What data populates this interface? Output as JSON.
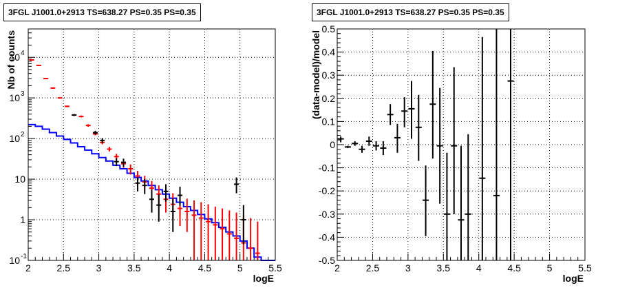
{
  "chart_data": [
    {
      "type": "line",
      "title": "3FGL J1001.0+2913 TS=638.27 PS=0.35 PS=0.35",
      "xlabel": "logE",
      "ylabel": "Nb of counts",
      "xlim": [
        2,
        5.5
      ],
      "ylim": [
        0.1,
        50000
      ],
      "yscale": "log",
      "grid": true,
      "x_ticks": [
        "2",
        "2.5",
        "3",
        "3.5",
        "4",
        "4.5",
        "5",
        "5.5"
      ],
      "y_ticks": [
        {
          "value": 0.1,
          "label": "10",
          "exp": "-1"
        },
        {
          "value": 1,
          "label": "1",
          "exp": ""
        },
        {
          "value": 10,
          "label": "10",
          "exp": ""
        },
        {
          "value": 100,
          "label": "10",
          "exp": "2"
        },
        {
          "value": 1000,
          "label": "10",
          "exp": "3"
        },
        {
          "value": 10000,
          "label": "10",
          "exp": "4"
        }
      ],
      "bin_edges": [
        2.0,
        2.1,
        2.2,
        2.3,
        2.4,
        2.5,
        2.6,
        2.7,
        2.8,
        2.9,
        3.0,
        3.1,
        3.2,
        3.3,
        3.4,
        3.5,
        3.6,
        3.7,
        3.8,
        3.9,
        4.0,
        4.1,
        4.2,
        4.3,
        4.4,
        4.5,
        4.6,
        4.7,
        4.8,
        4.9,
        5.0,
        5.1,
        5.2,
        5.3,
        5.4,
        5.5
      ],
      "series": [
        {
          "name": "",
          "color": "#0000ff",
          "kind": "step",
          "values": [
            220,
            200,
            170,
            140,
            115,
            95,
            78,
            63,
            52,
            42,
            34,
            28,
            22,
            18,
            14,
            11,
            9,
            7,
            5.5,
            4.3,
            3.4,
            2.7,
            2.1,
            1.7,
            1.35,
            1.05,
            0.85,
            0.65,
            0.5,
            0.4,
            0.3,
            0.2,
            0.12,
            0.1,
            0.1
          ]
        },
        {
          "name": "",
          "color": "#ff0000",
          "kind": "error",
          "points": [
            {
              "x": 2.05,
              "y": 8600,
              "lo": 8400,
              "hi": 8800
            },
            {
              "x": 2.15,
              "y": 6300,
              "lo": 6150,
              "hi": 6450
            },
            {
              "x": 2.25,
              "y": 3000,
              "lo": 2900,
              "hi": 3100
            },
            {
              "x": 2.35,
              "y": 1750,
              "lo": 1680,
              "hi": 1820
            },
            {
              "x": 2.45,
              "y": 1000,
              "lo": 960,
              "hi": 1040
            },
            {
              "x": 2.55,
              "y": 620,
              "lo": 590,
              "hi": 650
            },
            {
              "x": 2.65,
              "y": 380,
              "lo": 360,
              "hi": 400
            },
            {
              "x": 2.75,
              "y": 350,
              "lo": 330,
              "hi": 370
            },
            {
              "x": 2.85,
              "y": 210,
              "lo": 195,
              "hi": 225
            },
            {
              "x": 2.95,
              "y": 130,
              "lo": 120,
              "hi": 140
            },
            {
              "x": 3.05,
              "y": 80,
              "lo": 72,
              "hi": 88
            },
            {
              "x": 3.15,
              "y": 55,
              "lo": 48,
              "hi": 62
            },
            {
              "x": 3.25,
              "y": 36,
              "lo": 30,
              "hi": 42
            },
            {
              "x": 3.35,
              "y": 24,
              "lo": 19,
              "hi": 29
            },
            {
              "x": 3.45,
              "y": 18,
              "lo": 13,
              "hi": 23
            },
            {
              "x": 3.55,
              "y": 12,
              "lo": 8,
              "hi": 16
            },
            {
              "x": 3.65,
              "y": 8.5,
              "lo": 5.5,
              "hi": 12
            },
            {
              "x": 3.75,
              "y": 6,
              "lo": 3.5,
              "hi": 9
            },
            {
              "x": 3.85,
              "y": 4.3,
              "lo": 2.3,
              "hi": 7
            },
            {
              "x": 3.95,
              "y": 3.2,
              "lo": 1.5,
              "hi": 5.5
            },
            {
              "x": 4.05,
              "y": 2.4,
              "lo": 1.0,
              "hi": 4.5
            },
            {
              "x": 4.15,
              "y": 1.9,
              "lo": 0.7,
              "hi": 3.8
            },
            {
              "x": 4.25,
              "y": 1.6,
              "lo": 0.5,
              "hi": 3.3
            },
            {
              "x": 4.35,
              "y": 1.3,
              "lo": 0.1,
              "hi": 3.0
            },
            {
              "x": 4.45,
              "y": 1.1,
              "lo": 0.1,
              "hi": 2.7
            },
            {
              "x": 4.55,
              "y": 0.9,
              "lo": 0.1,
              "hi": 2.4
            },
            {
              "x": 4.65,
              "y": 0.75,
              "lo": 0.1,
              "hi": 2.1
            },
            {
              "x": 4.75,
              "y": 0.6,
              "lo": 0.1,
              "hi": 1.9
            },
            {
              "x": 4.85,
              "y": 0.45,
              "lo": 0.1,
              "hi": 1.7
            },
            {
              "x": 4.95,
              "y": 0.35,
              "lo": 0.1,
              "hi": 1.5
            },
            {
              "x": 5.05,
              "y": 0.27,
              "lo": 0.1,
              "hi": 1.3
            },
            {
              "x": 5.15,
              "y": 0.2,
              "lo": 0.1,
              "hi": 1.1
            },
            {
              "x": 5.25,
              "y": 0.15,
              "lo": 0.1,
              "hi": 0.9
            }
          ]
        },
        {
          "name": "",
          "color": "#000000",
          "kind": "error",
          "points": [
            {
              "x": 2.65,
              "y": 380,
              "lo": 360,
              "hi": 400
            },
            {
              "x": 2.95,
              "y": 140,
              "lo": 125,
              "hi": 155
            },
            {
              "x": 3.05,
              "y": 90,
              "lo": 78,
              "hi": 102
            },
            {
              "x": 3.25,
              "y": 27,
              "lo": 21,
              "hi": 33
            },
            {
              "x": 3.35,
              "y": 26,
              "lo": 20,
              "hi": 32
            },
            {
              "x": 3.55,
              "y": 8,
              "lo": 5,
              "hi": 11
            },
            {
              "x": 3.65,
              "y": 7,
              "lo": 4.3,
              "hi": 10
            },
            {
              "x": 3.75,
              "y": 3.2,
              "lo": 1.5,
              "hi": 5.5
            },
            {
              "x": 3.85,
              "y": 2.3,
              "lo": 0.9,
              "hi": 4.2
            },
            {
              "x": 3.95,
              "y": 5,
              "lo": 2.8,
              "hi": 7.5
            },
            {
              "x": 4.05,
              "y": 1.6,
              "lo": 0.5,
              "hi": 3.3
            },
            {
              "x": 4.15,
              "y": 4,
              "lo": 2.2,
              "hi": 6.5
            },
            {
              "x": 4.95,
              "y": 7.5,
              "lo": 4.5,
              "hi": 11
            },
            {
              "x": 5.05,
              "y": 1,
              "lo": 0.25,
              "hi": 2.3
            }
          ]
        }
      ]
    },
    {
      "type": "scatter",
      "title": "3FGL J1001.0+2913 TS=638.27 PS=0.35 PS=0.35",
      "xlabel": "logE",
      "ylabel": "(data-model)/model",
      "xlim": [
        2,
        5.5
      ],
      "ylim": [
        -0.5,
        0.5
      ],
      "yscale": "linear",
      "grid": true,
      "x_ticks": [
        "2",
        "2.5",
        "3",
        "3.5",
        "4",
        "4.5",
        "5",
        "5.5"
      ],
      "y_ticks": [
        "-0.5",
        "-0.4",
        "-0.3",
        "-0.2",
        "-0.1",
        "0",
        "0.1",
        "0.2",
        "0.3",
        "0.4",
        "0.5"
      ],
      "series": [
        {
          "name": "",
          "color": "#000000",
          "points": [
            {
              "x": 2.05,
              "y": 0.025,
              "lo": 0.01,
              "hi": 0.035
            },
            {
              "x": 2.15,
              "y": -0.01,
              "lo": -0.015,
              "hi": -0.005
            },
            {
              "x": 2.25,
              "y": 0.005,
              "lo": -0.005,
              "hi": 0.015
            },
            {
              "x": 2.35,
              "y": -0.02,
              "lo": -0.035,
              "hi": -0.005
            },
            {
              "x": 2.45,
              "y": 0.015,
              "lo": -0.005,
              "hi": 0.035
            },
            {
              "x": 2.55,
              "y": -0.005,
              "lo": -0.025,
              "hi": 0.015
            },
            {
              "x": 2.65,
              "y": -0.015,
              "lo": -0.045,
              "hi": 0.015
            },
            {
              "x": 2.75,
              "y": 0.13,
              "lo": 0.085,
              "hi": 0.175
            },
            {
              "x": 2.85,
              "y": 0.03,
              "lo": -0.035,
              "hi": 0.09
            },
            {
              "x": 2.95,
              "y": 0.145,
              "lo": 0.075,
              "hi": 0.205
            },
            {
              "x": 3.05,
              "y": 0.155,
              "lo": 0.025,
              "hi": 0.275
            },
            {
              "x": 3.15,
              "y": 0.075,
              "lo": -0.07,
              "hi": 0.215
            },
            {
              "x": 3.25,
              "y": -0.24,
              "lo": -0.395,
              "hi": -0.09
            },
            {
              "x": 3.35,
              "y": 0.175,
              "lo": -0.06,
              "hi": 0.405
            },
            {
              "x": 3.45,
              "y": -0.005,
              "lo": -0.255,
              "hi": 0.245
            },
            {
              "x": 3.55,
              "y": -0.3,
              "lo": -0.5,
              "hi": -0.035
            },
            {
              "x": 3.65,
              "y": -0.005,
              "lo": -0.3,
              "hi": 0.335
            },
            {
              "x": 3.75,
              "y": -0.325,
              "lo": -0.5,
              "hi": -0.005
            },
            {
              "x": 3.85,
              "y": -0.3,
              "lo": -0.5,
              "hi": 0.045
            },
            {
              "x": 4.05,
              "y": -0.145,
              "lo": -0.5,
              "hi": 0.465
            },
            {
              "x": 4.25,
              "y": -0.22,
              "lo": -0.5,
              "hi": 0.5
            },
            {
              "x": 4.45,
              "y": 0.275,
              "lo": -0.5,
              "hi": 0.5
            }
          ]
        }
      ]
    }
  ]
}
